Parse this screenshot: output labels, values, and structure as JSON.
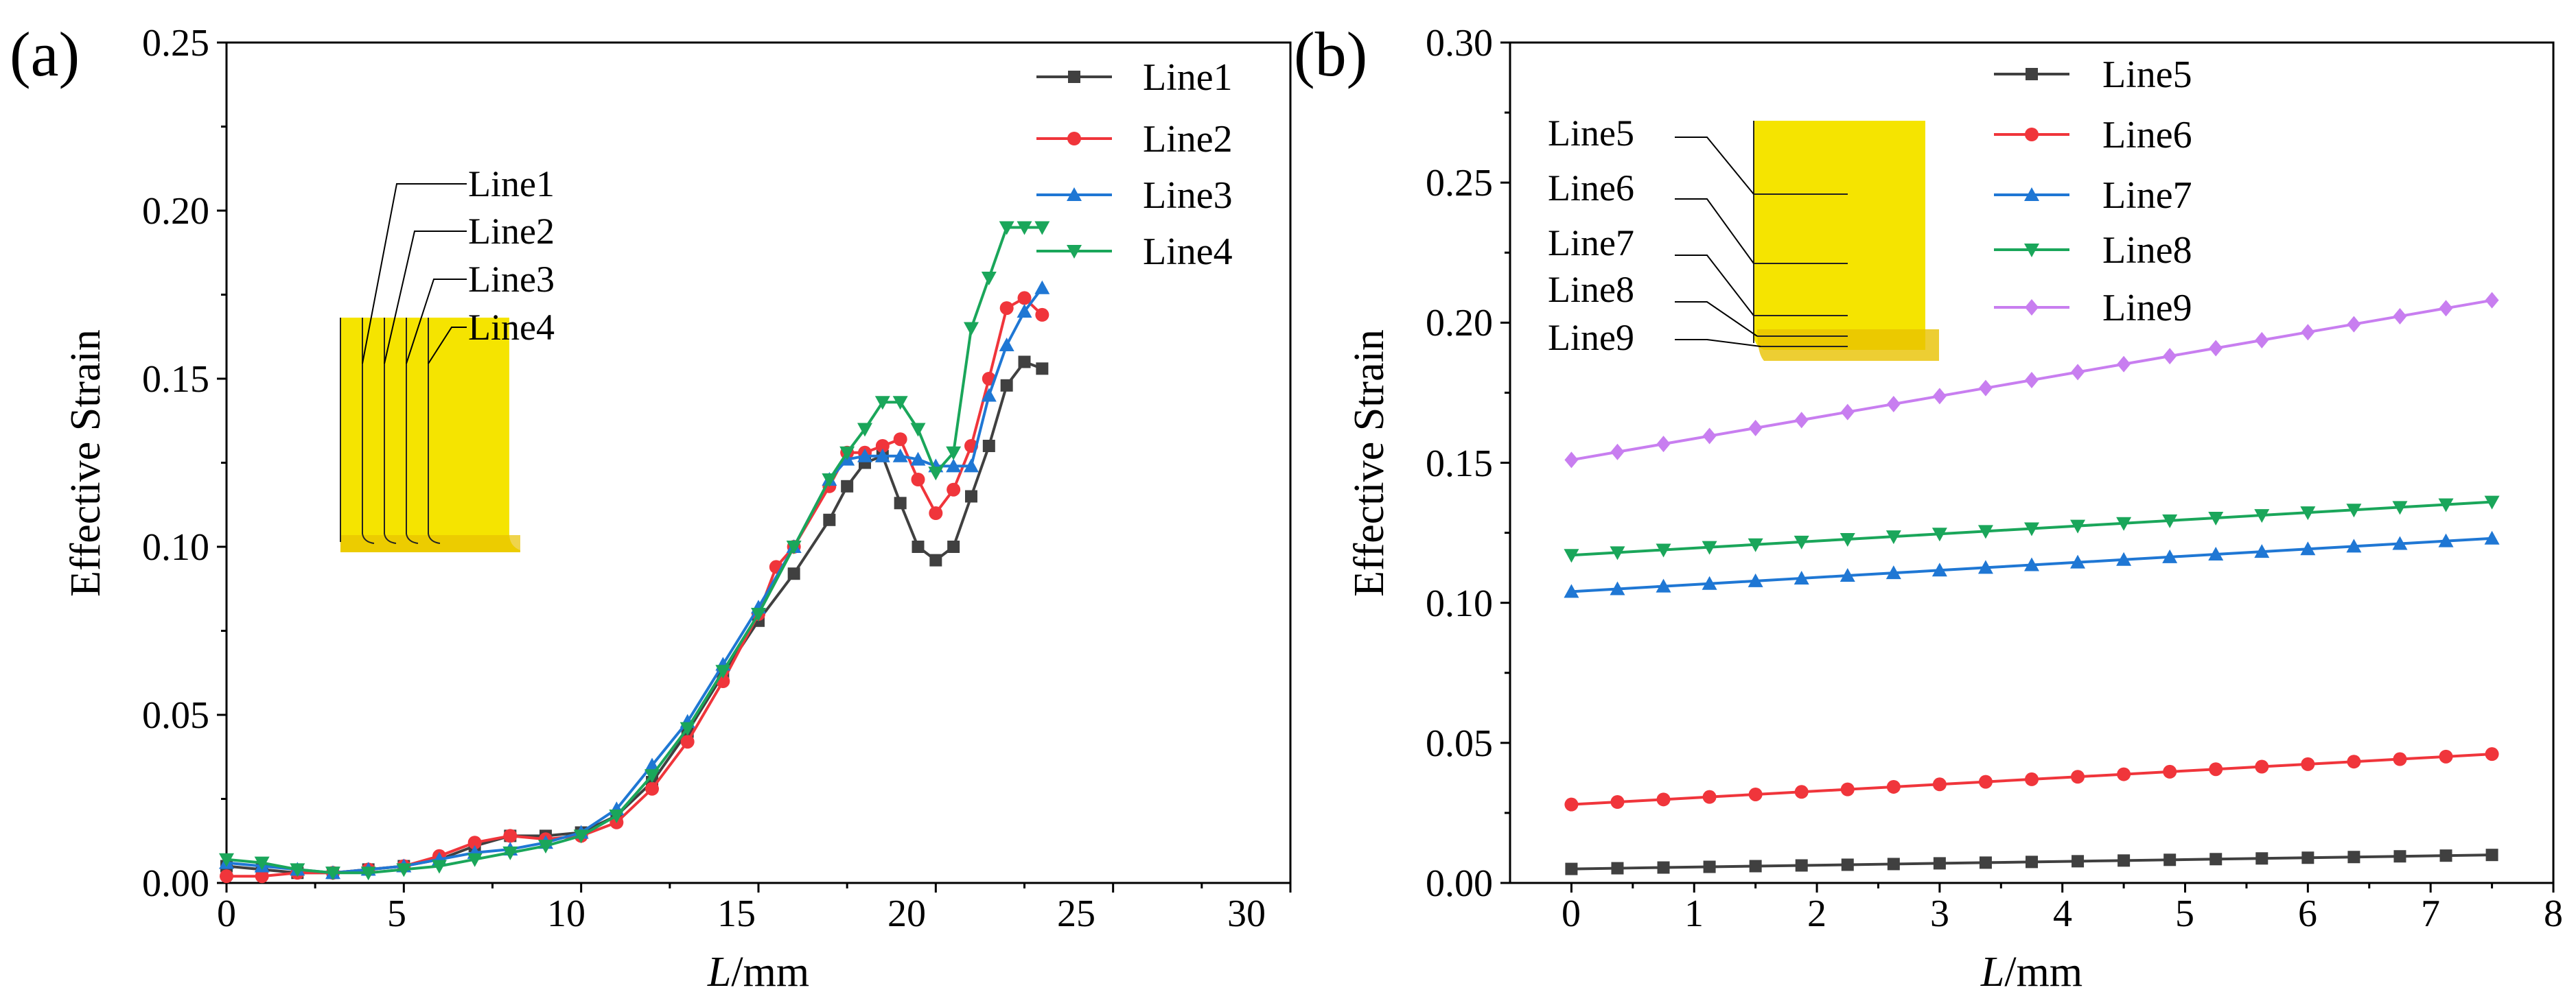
{
  "chart_data": [
    {
      "type": "line",
      "panel_label": "(a)",
      "xlabel_italic": "L",
      "xlabel_rest": "/mm",
      "ylabel": "Effective Strain",
      "xlim": [
        0,
        30
      ],
      "ylim": [
        0,
        0.25
      ],
      "xticks": [
        "0",
        "5",
        "10",
        "15",
        "20",
        "25",
        "30"
      ],
      "yticks": [
        "0.00",
        "0.05",
        "0.10",
        "0.15",
        "0.20",
        "0.25"
      ],
      "legend_position": "top-right",
      "inset_labels": [
        "Line1",
        "Line2",
        "Line3",
        "Line4"
      ],
      "series": [
        {
          "name": "Line1",
          "color": "#404040",
          "marker": "square",
          "x": [
            0,
            1,
            2,
            3,
            4,
            5,
            6,
            7,
            8,
            9,
            10,
            11,
            12,
            13,
            14,
            15,
            16,
            17,
            17.5,
            18,
            18.5,
            19,
            19.5,
            20,
            20.5,
            21,
            21.5,
            22,
            22.5,
            23
          ],
          "y": [
            0.005,
            0.004,
            0.003,
            0.003,
            0.004,
            0.005,
            0.007,
            0.011,
            0.014,
            0.014,
            0.015,
            0.02,
            0.03,
            0.045,
            0.062,
            0.078,
            0.092,
            0.108,
            0.118,
            0.125,
            0.127,
            0.113,
            0.1,
            0.096,
            0.1,
            0.115,
            0.13,
            0.148,
            0.155,
            0.153
          ]
        },
        {
          "name": "Line2",
          "color": "#f0353b",
          "marker": "circle",
          "x": [
            0,
            1,
            2,
            3,
            4,
            5,
            6,
            7,
            8,
            9,
            10,
            11,
            12,
            13,
            14,
            15,
            15.5,
            16,
            17,
            17.5,
            18,
            18.5,
            19,
            19.5,
            20,
            20.5,
            21,
            21.5,
            22,
            22.5,
            23
          ],
          "y": [
            0.002,
            0.002,
            0.003,
            0.003,
            0.004,
            0.005,
            0.008,
            0.012,
            0.014,
            0.013,
            0.014,
            0.018,
            0.028,
            0.042,
            0.06,
            0.08,
            0.094,
            0.1,
            0.118,
            0.128,
            0.128,
            0.13,
            0.132,
            0.12,
            0.11,
            0.117,
            0.13,
            0.15,
            0.171,
            0.174,
            0.169
          ]
        },
        {
          "name": "Line3",
          "color": "#1f77d4",
          "marker": "triangle-up",
          "x": [
            0,
            1,
            2,
            3,
            4,
            5,
            6,
            7,
            8,
            9,
            10,
            11,
            12,
            13,
            14,
            15,
            16,
            17,
            17.5,
            18,
            18.5,
            19,
            19.5,
            20,
            20.5,
            21,
            21.5,
            22,
            22.5,
            23
          ],
          "y": [
            0.006,
            0.005,
            0.004,
            0.003,
            0.004,
            0.005,
            0.007,
            0.009,
            0.01,
            0.012,
            0.015,
            0.022,
            0.035,
            0.048,
            0.065,
            0.082,
            0.1,
            0.12,
            0.126,
            0.127,
            0.127,
            0.127,
            0.126,
            0.124,
            0.124,
            0.124,
            0.145,
            0.16,
            0.17,
            0.177
          ]
        },
        {
          "name": "Line4",
          "color": "#1aa65a",
          "marker": "triangle-down",
          "x": [
            0,
            1,
            2,
            3,
            4,
            5,
            6,
            7,
            8,
            9,
            10,
            11,
            12,
            13,
            14,
            15,
            16,
            17,
            17.5,
            18,
            18.5,
            19,
            19.5,
            20,
            20.5,
            21,
            21.5,
            22,
            22.5,
            23
          ],
          "y": [
            0.007,
            0.006,
            0.004,
            0.003,
            0.003,
            0.004,
            0.005,
            0.007,
            0.009,
            0.011,
            0.014,
            0.02,
            0.032,
            0.046,
            0.063,
            0.08,
            0.1,
            0.12,
            0.128,
            0.135,
            0.143,
            0.143,
            0.135,
            0.122,
            0.128,
            0.165,
            0.18,
            0.195,
            0.195,
            0.195
          ]
        }
      ]
    },
    {
      "type": "line",
      "panel_label": "(b)",
      "xlabel_italic": "L",
      "xlabel_rest": "/mm",
      "ylabel": "Effective Strain",
      "xlim": [
        -0.5,
        8
      ],
      "ylim": [
        0,
        0.3
      ],
      "xticks": [
        "0",
        "1",
        "2",
        "3",
        "4",
        "5",
        "6",
        "7",
        "8"
      ],
      "yticks": [
        "0.00",
        "0.05",
        "0.10",
        "0.15",
        "0.20",
        "0.25",
        "0.30"
      ],
      "legend_position": "top-center",
      "inset_labels": [
        "Line5",
        "Line6",
        "Line7",
        "Line8",
        "Line9"
      ],
      "series": [
        {
          "name": "Line5",
          "color": "#404040",
          "marker": "square",
          "x_start": 0,
          "x_end": 7.5,
          "points": 21,
          "y_start": 0.005,
          "y_end": 0.01
        },
        {
          "name": "Line6",
          "color": "#f0353b",
          "marker": "circle",
          "x_start": 0,
          "x_end": 7.5,
          "points": 21,
          "y_start": 0.028,
          "y_end": 0.046
        },
        {
          "name": "Line7",
          "color": "#1f77d4",
          "marker": "triangle-up",
          "x_start": 0,
          "x_end": 7.5,
          "points": 21,
          "y_start": 0.104,
          "y_end": 0.123
        },
        {
          "name": "Line8",
          "color": "#1aa65a",
          "marker": "triangle-down",
          "x_start": 0,
          "x_end": 7.5,
          "points": 21,
          "y_start": 0.117,
          "y_end": 0.136
        },
        {
          "name": "Line9",
          "color": "#c87ef0",
          "marker": "diamond",
          "x_start": 0,
          "x_end": 7.5,
          "points": 21,
          "y_start": 0.151,
          "y_end": 0.208
        }
      ]
    }
  ]
}
